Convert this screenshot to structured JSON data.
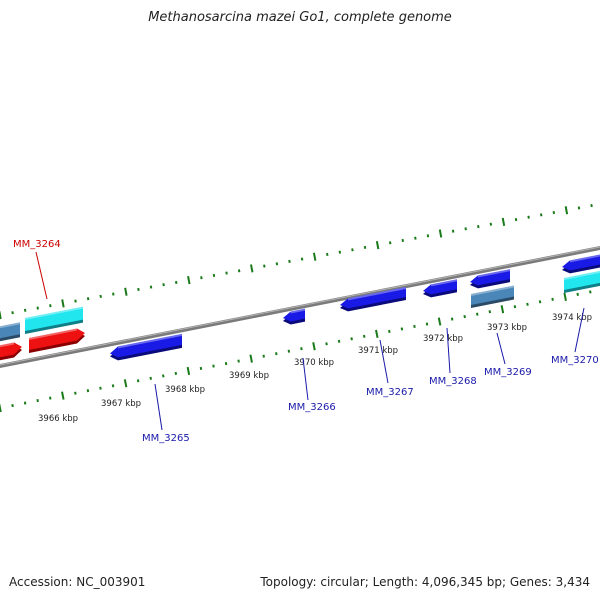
{
  "title": "Methanosarcina mazei Go1, complete genome",
  "colors": {
    "backbone": "#888888",
    "ticks": "#1a7a1a",
    "gene_blue": "#1a1ae6",
    "gene_red": "#ee1111",
    "gene_cyan": "#22e6ee",
    "gene_steel": "#4a86b8",
    "label_blue": "#1a1aaa",
    "label_red": "#cc0000"
  },
  "scale_labels": [
    "3966 kbp",
    "3967 kbp",
    "3968 kbp",
    "3969 kbp",
    "3970 kbp",
    "3971 kbp",
    "3972 kbp",
    "3973 kbp",
    "3974 kbp"
  ],
  "gene_labels": [
    "MM_3264",
    "MM_3265",
    "MM_3266",
    "MM_3267",
    "MM_3268",
    "MM_3269",
    "MM_3270"
  ],
  "footer": {
    "accession": "Accession: NC_003901",
    "summary": "Topology: circular; Length: 4,096,345 bp; Genes: 3,434"
  }
}
